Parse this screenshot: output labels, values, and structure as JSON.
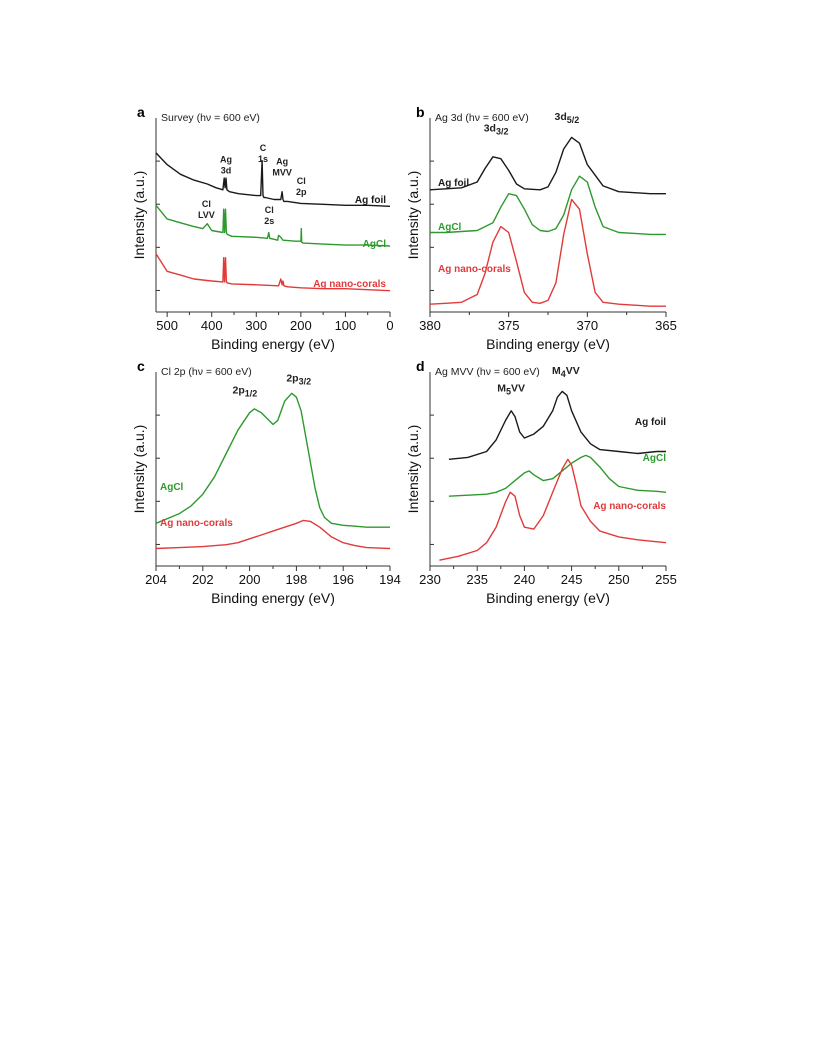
{
  "colors": {
    "ag_foil": "#1a1a1a",
    "agcl": "#2e9a2e",
    "ag_nano_corals": "#e23a3a"
  },
  "chart_data": [
    {
      "type": "line",
      "panel": "a",
      "title": "Survey (hν = 600 eV)",
      "xlabel": "Binding energy (eV)",
      "ylabel": "Intensity (a.u.)",
      "xlim": [
        525,
        0
      ],
      "ylim": [
        0,
        10
      ],
      "xticks": [
        500,
        400,
        300,
        200,
        100,
        0
      ],
      "grid": false,
      "series": [
        {
          "name": "Ag foil",
          "color": "#1a1a1a",
          "x": [
            525,
            500,
            470,
            440,
            410,
            390,
            375,
            372,
            370,
            368,
            366,
            360,
            340,
            300,
            290,
            287,
            285,
            283,
            280,
            260,
            245,
            242,
            240,
            238,
            230,
            200,
            150,
            100,
            50,
            0
          ],
          "y": [
            8.2,
            7.6,
            7.1,
            6.8,
            6.6,
            6.4,
            6.3,
            6.9,
            6.4,
            6.9,
            6.3,
            6.2,
            6.1,
            6.0,
            6.0,
            7.8,
            6.0,
            5.9,
            5.9,
            5.8,
            5.8,
            6.2,
            5.8,
            5.7,
            5.7,
            5.6,
            5.55,
            5.5,
            5.5,
            5.45
          ]
        },
        {
          "name": "AgCl",
          "color": "#2e9a2e",
          "x": [
            525,
            500,
            470,
            440,
            420,
            410,
            400,
            375,
            373,
            371,
            369,
            367,
            365,
            355,
            300,
            275,
            272,
            270,
            260,
            252,
            250,
            245,
            240,
            212,
            200,
            199,
            198,
            195,
            150,
            100,
            50,
            0
          ],
          "y": [
            5.5,
            4.8,
            4.6,
            4.4,
            4.3,
            4.55,
            4.2,
            4.1,
            5.3,
            4.1,
            5.3,
            4.1,
            4.0,
            3.9,
            3.85,
            3.8,
            4.1,
            3.8,
            3.75,
            3.7,
            3.95,
            3.85,
            3.7,
            3.65,
            3.65,
            4.3,
            3.6,
            3.55,
            3.5,
            3.45,
            3.45,
            3.4
          ]
        },
        {
          "name": "Ag nano-corals",
          "color": "#e23a3a",
          "x": [
            525,
            500,
            470,
            440,
            400,
            375,
            373,
            371,
            369,
            367,
            365,
            355,
            300,
            250,
            245,
            242,
            240,
            238,
            230,
            200,
            150,
            100,
            50,
            0
          ],
          "y": [
            3.0,
            2.1,
            1.9,
            1.7,
            1.6,
            1.55,
            2.8,
            1.55,
            2.8,
            1.55,
            1.5,
            1.45,
            1.4,
            1.35,
            1.7,
            1.4,
            1.6,
            1.35,
            1.3,
            1.25,
            1.2,
            1.2,
            1.15,
            1.1
          ]
        }
      ],
      "annotations": [
        {
          "lines": [
            "Ag",
            "3d"
          ],
          "x": 368,
          "y": 7.7
        },
        {
          "lines": [
            "C",
            "1s"
          ],
          "x": 285,
          "y": 8.3
        },
        {
          "lines": [
            "Ag",
            "MVV"
          ],
          "x": 242,
          "y": 7.6
        },
        {
          "lines": [
            "Cl",
            "2p"
          ],
          "x": 199,
          "y": 6.6
        },
        {
          "lines": [
            "Cl",
            "LVV"
          ],
          "x": 412,
          "y": 5.4
        },
        {
          "lines": [
            "Cl",
            "2s"
          ],
          "x": 271,
          "y": 5.1
        }
      ]
    },
    {
      "type": "line",
      "panel": "b",
      "title": "Ag 3d (hν = 600 eV)",
      "xlabel": "Binding energy (eV)",
      "ylabel": "Intensity (a.u.)",
      "xlim": [
        380,
        365
      ],
      "ylim": [
        0,
        10
      ],
      "xticks": [
        380,
        375,
        370,
        365
      ],
      "grid": false,
      "series": [
        {
          "name": "Ag foil",
          "color": "#1a1a1a",
          "x": [
            380,
            379,
            378,
            377,
            376.5,
            376,
            375.5,
            375,
            374.5,
            374,
            373,
            372.5,
            372,
            371.5,
            371,
            370.5,
            370,
            369,
            368,
            367,
            366,
            365
          ],
          "y": [
            6.3,
            6.35,
            6.4,
            6.7,
            7.4,
            8.0,
            7.9,
            7.3,
            6.6,
            6.35,
            6.3,
            6.45,
            7.2,
            8.4,
            9.0,
            8.7,
            7.6,
            6.5,
            6.2,
            6.15,
            6.1,
            6.1
          ]
        },
        {
          "name": "AgCl",
          "color": "#2e9a2e",
          "x": [
            380,
            379,
            378,
            377,
            376,
            375.5,
            375,
            374.5,
            374,
            373.5,
            373,
            372.5,
            372,
            371.5,
            371,
            370.5,
            370,
            369.5,
            369,
            368,
            367,
            366,
            365
          ],
          "y": [
            4.1,
            4.1,
            4.15,
            4.2,
            4.6,
            5.4,
            6.1,
            6.0,
            5.3,
            4.5,
            4.2,
            4.15,
            4.3,
            5.0,
            6.3,
            7.0,
            6.7,
            5.4,
            4.4,
            4.1,
            4.05,
            4.0,
            4.0
          ]
        },
        {
          "name": "Ag nano-corals",
          "color": "#e23a3a",
          "x": [
            380,
            379,
            378,
            377,
            376.5,
            376,
            375.5,
            375,
            374.5,
            374,
            373.5,
            373,
            372.5,
            372,
            371.5,
            371,
            370.5,
            370,
            369.5,
            369,
            368,
            367,
            366,
            365
          ],
          "y": [
            0.4,
            0.45,
            0.5,
            0.9,
            2.0,
            3.6,
            4.4,
            4.1,
            2.6,
            1.0,
            0.5,
            0.45,
            0.6,
            1.5,
            4.0,
            5.8,
            5.3,
            3.0,
            1.0,
            0.5,
            0.4,
            0.35,
            0.3,
            0.3
          ]
        }
      ],
      "annotations": [
        {
          "text": "3d",
          "sub": "3/2",
          "x": 375.8,
          "y": 9.3
        },
        {
          "text": "3d",
          "sub": "5/2",
          "x": 371.3,
          "y": 9.9
        }
      ]
    },
    {
      "type": "line",
      "panel": "c",
      "title": "Cl 2p (hν = 600 eV)",
      "xlabel": "Binding energy (eV)",
      "ylabel": "Intensity (a.u.)",
      "xlim": [
        204,
        194
      ],
      "ylim": [
        0,
        10
      ],
      "xticks": [
        204,
        202,
        200,
        198,
        196,
        194
      ],
      "grid": false,
      "series": [
        {
          "name": "AgCl",
          "color": "#2e9a2e",
          "x": [
            204,
            203,
            202.5,
            202,
            201.5,
            201,
            200.5,
            200,
            199.8,
            199.5,
            199,
            198.8,
            198.5,
            198.2,
            198,
            197.8,
            197.5,
            197.2,
            197,
            196.8,
            196.5,
            196,
            195.5,
            195,
            194
          ],
          "y": [
            2.2,
            2.7,
            3.1,
            3.7,
            4.6,
            5.8,
            7.0,
            7.9,
            8.1,
            7.9,
            7.3,
            7.5,
            8.5,
            8.9,
            8.7,
            8.0,
            6.0,
            4.0,
            3.0,
            2.5,
            2.2,
            2.1,
            2.05,
            2.0,
            2.0
          ]
        },
        {
          "name": "Ag nano-corals",
          "color": "#e23a3a",
          "x": [
            204,
            203,
            202,
            201,
            200.5,
            200,
            199.5,
            199,
            198.5,
            198,
            197.7,
            197.4,
            197,
            196.5,
            196,
            195.5,
            195,
            194
          ],
          "y": [
            0.9,
            0.95,
            1.0,
            1.1,
            1.2,
            1.4,
            1.6,
            1.8,
            2.0,
            2.2,
            2.35,
            2.3,
            2.0,
            1.5,
            1.2,
            1.05,
            0.95,
            0.9
          ]
        }
      ],
      "annotations": [
        {
          "text": "2p",
          "sub": "1/2",
          "x": 200.2,
          "y": 8.9
        },
        {
          "text": "2p",
          "sub": "3/2",
          "x": 197.9,
          "y": 9.5
        }
      ]
    },
    {
      "type": "line",
      "panel": "d",
      "title": "Ag MVV (hν = 600 eV)",
      "xlabel": "Binding energy (eV)",
      "ylabel": "Intensity (a.u.)",
      "xlim": [
        230,
        255
      ],
      "ylim": [
        0,
        10
      ],
      "xticks": [
        230,
        235,
        240,
        245,
        250,
        255
      ],
      "grid": false,
      "series": [
        {
          "name": "Ag foil",
          "color": "#1a1a1a",
          "x": [
            232,
            234,
            236,
            237,
            238,
            238.6,
            239,
            239.5,
            240,
            241,
            242,
            243,
            243.5,
            244,
            244.5,
            245,
            246,
            247,
            248,
            250,
            252,
            254,
            255
          ],
          "y": [
            5.5,
            5.6,
            5.9,
            6.5,
            7.5,
            8.0,
            7.7,
            6.9,
            6.6,
            6.8,
            7.2,
            8.0,
            8.7,
            9.0,
            8.8,
            8.0,
            6.9,
            6.3,
            6.0,
            5.9,
            5.8,
            5.9,
            5.9
          ]
        },
        {
          "name": "AgCl",
          "color": "#2e9a2e",
          "x": [
            232,
            234,
            236,
            237,
            238,
            239,
            240,
            240.5,
            241,
            242,
            243,
            244,
            245,
            246,
            246.5,
            247,
            248,
            249,
            250,
            252,
            254,
            255
          ],
          "y": [
            3.6,
            3.65,
            3.7,
            3.8,
            4.0,
            4.4,
            4.8,
            4.9,
            4.7,
            4.4,
            4.5,
            4.9,
            5.3,
            5.6,
            5.7,
            5.6,
            5.1,
            4.5,
            4.1,
            3.9,
            3.85,
            3.8
          ]
        },
        {
          "name": "Ag nano-corals",
          "color": "#e23a3a",
          "x": [
            231,
            233,
            235,
            236,
            237,
            238,
            238.5,
            239,
            239.5,
            240,
            241,
            242,
            243,
            244,
            244.6,
            245,
            245.5,
            246,
            247,
            248,
            250,
            252,
            255
          ],
          "y": [
            0.3,
            0.5,
            0.8,
            1.2,
            2.0,
            3.3,
            3.8,
            3.6,
            2.6,
            2.0,
            1.9,
            2.6,
            3.8,
            5.0,
            5.5,
            5.2,
            4.2,
            3.1,
            2.3,
            1.8,
            1.5,
            1.35,
            1.2
          ]
        }
      ],
      "annotations": [
        {
          "text": "M",
          "sub": "5",
          "tail": "VV",
          "x": 238.6,
          "y": 9.0
        },
        {
          "text": "M",
          "sub": "4",
          "tail": "VV",
          "x": 244.4,
          "y": 9.9
        }
      ]
    }
  ]
}
